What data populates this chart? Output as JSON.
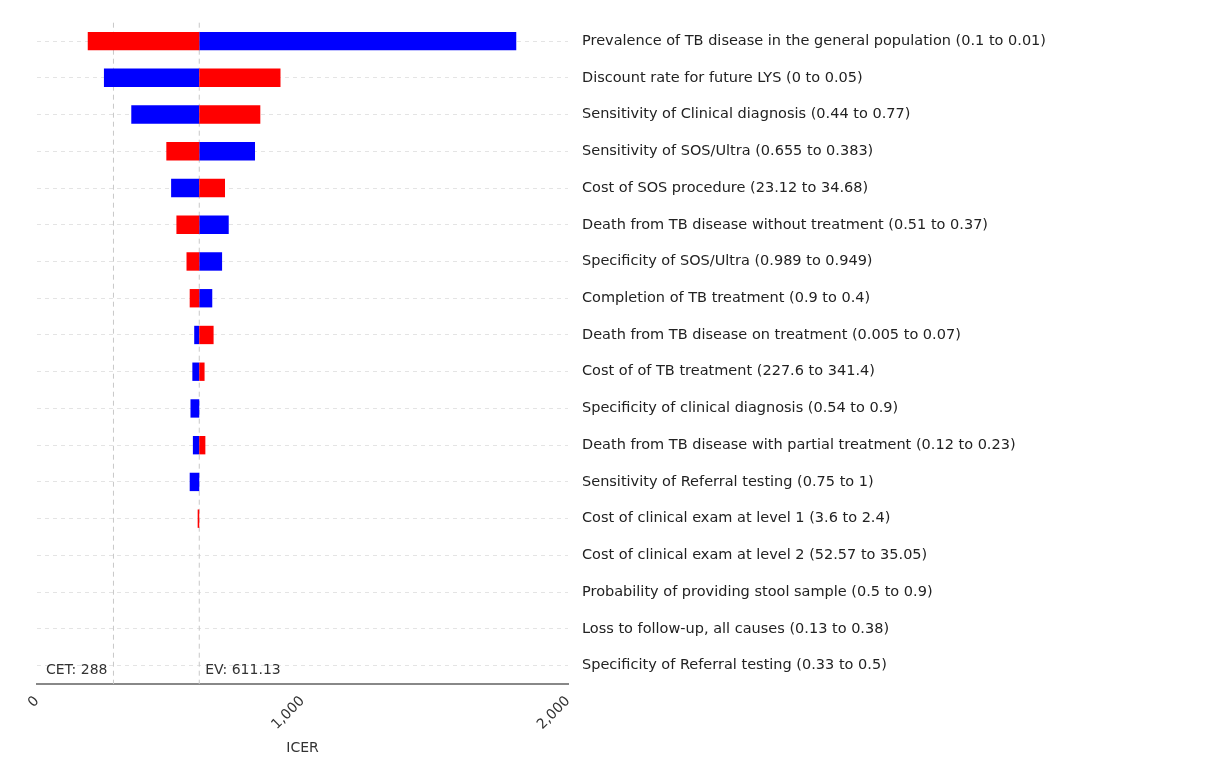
{
  "chart_data": {
    "type": "bar",
    "orientation": "horizontal",
    "xlabel": "ICER",
    "categories": [
      "Prevalence of TB disease in the general population (0.1 to 0.01)",
      "Discount rate for future LYS (0 to 0.05)",
      "Sensitivity of Clinical diagnosis (0.44 to 0.77)",
      "Sensitivity of SOS/Ultra (0.655 to 0.383)",
      "Cost of SOS procedure (23.12 to 34.68)",
      "Death from TB disease without treatment (0.51 to 0.37)",
      "Specificity of SOS/Ultra (0.989 to 0.949)",
      "Completion of TB treatment (0.9 to 0.4)",
      "Death from TB disease on treatment (0.005 to 0.07)",
      "Cost of of TB treatment (227.6 to 341.4)",
      "Specificity of clinical diagnosis (0.54 to 0.9)",
      "Death from TB disease with partial treatment (0.12 to 0.23)",
      "Sensitivity of Referral testing (0.75 to 1)",
      "Cost of clinical exam at level 1 (3.6 to 2.4)",
      "Cost of clinical exam at level 2 (52.57 to 35.05)",
      "Probability of providing stool sample (0.5 to 0.9)",
      "Loss to follow-up, all causes (0.13 to 0.38)",
      "Specificity of Referral testing (0.33 to 0.5)"
    ],
    "series": [
      {
        "color": "#ff0000",
        "base": [
          611.13,
          611.13,
          611.13,
          611.13,
          611.13,
          611.13,
          611.13,
          611.13,
          611.13,
          611.13,
          null,
          611.13,
          null,
          611.13,
          null,
          null,
          null,
          null
        ],
        "values": [
          -420,
          306,
          230,
          -124,
          97,
          -86,
          -48,
          -36,
          54,
          20,
          null,
          23,
          null,
          -6,
          null,
          null,
          null,
          null
        ]
      },
      {
        "color": "#0000ff",
        "base": [
          611.13,
          611.13,
          611.13,
          611.13,
          611.13,
          611.13,
          611.13,
          611.13,
          611.13,
          611.13,
          611.13,
          611.13,
          611.13,
          null,
          null,
          null,
          null,
          null
        ],
        "values": [
          1194,
          -359,
          -256,
          210,
          -106,
          111,
          86,
          49,
          -19,
          -26,
          -33,
          -24,
          -36,
          null,
          null,
          null,
          null,
          null
        ]
      }
    ],
    "xlim": [
      0,
      2000
    ],
    "xticks": [
      0,
      {
        "value": 1000,
        "label": "1,000"
      },
      {
        "value": 2000,
        "label": "2,000"
      }
    ],
    "ref_lines": [
      {
        "axis": "x",
        "value": 288,
        "label": "CET: 288",
        "color": "#c8c8c8",
        "line_style": "dashed"
      },
      {
        "axis": "x",
        "value": 611.13,
        "label": "EV: 611.13",
        "color": "#c8c8c8",
        "line_style": "dashed"
      }
    ],
    "grid": "y",
    "legend": false
  }
}
